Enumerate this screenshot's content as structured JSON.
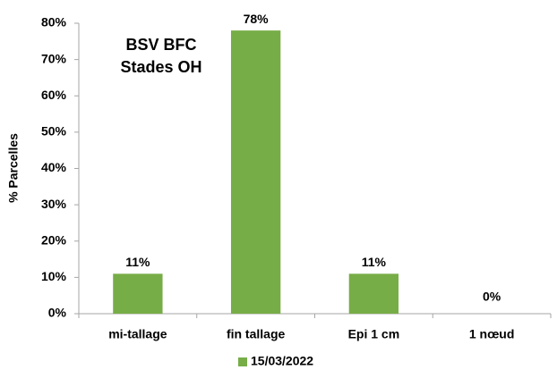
{
  "chart_data": {
    "type": "bar",
    "annotation": [
      "BSV BFC",
      "Stades OH"
    ],
    "y_label": "% Parcelles",
    "categories": [
      "mi-tallage",
      "fin tallage",
      "Epi 1 cm",
      "1 nœud"
    ],
    "series": [
      {
        "name": "15/03/2022",
        "color": "#77ad47",
        "values": [
          11,
          78,
          11,
          0
        ],
        "value_labels": [
          "11%",
          "78%",
          "11%",
          "0%"
        ]
      }
    ],
    "ylim": [
      0,
      80
    ],
    "yticks": [
      {
        "value": 0,
        "label": "0%"
      },
      {
        "value": 10,
        "label": "10%"
      },
      {
        "value": 20,
        "label": "20%"
      },
      {
        "value": 30,
        "label": "30%"
      },
      {
        "value": 40,
        "label": "40%"
      },
      {
        "value": 50,
        "label": "50%"
      },
      {
        "value": 60,
        "label": "60%"
      },
      {
        "value": 70,
        "label": "70%"
      },
      {
        "value": 80,
        "label": "80%"
      }
    ],
    "grid": false,
    "legend": "bottom"
  }
}
